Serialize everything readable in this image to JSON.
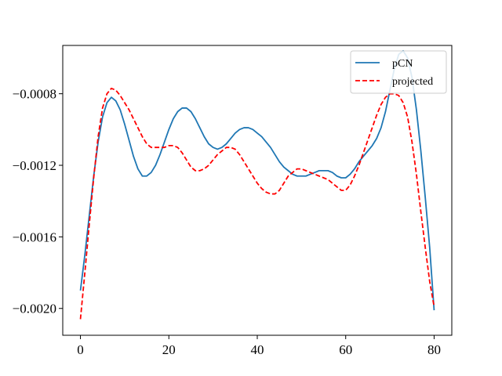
{
  "chart_data": {
    "type": "line",
    "title": "",
    "xlabel": "",
    "ylabel": "",
    "xlim": [
      -4,
      84
    ],
    "ylim": [
      -0.00215,
      -0.00053
    ],
    "xticks": [
      0,
      20,
      40,
      60,
      80
    ],
    "xtick_labels": [
      "0",
      "20",
      "40",
      "60",
      "80"
    ],
    "yticks": [
      -0.002,
      -0.0016,
      -0.0012,
      -0.0008
    ],
    "ytick_labels": [
      "−0.0020",
      "−0.0016",
      "−0.0012",
      "−0.0008"
    ],
    "grid": false,
    "legend": {
      "placement": "top-right"
    },
    "series": [
      {
        "name": "pCN",
        "color": "#1f77b4",
        "dash": "solid",
        "points": [
          [
            0,
            -0.0019
          ],
          [
            1,
            -0.0017
          ],
          [
            2,
            -0.00148
          ],
          [
            3,
            -0.00126
          ],
          [
            4,
            -0.00107
          ],
          [
            5,
            -0.00093
          ],
          [
            6,
            -0.00085
          ],
          [
            7,
            -0.00082
          ],
          [
            8,
            -0.00084
          ],
          [
            9,
            -0.00089
          ],
          [
            10,
            -0.00097
          ],
          [
            11,
            -0.00106
          ],
          [
            12,
            -0.00115
          ],
          [
            13,
            -0.00122
          ],
          [
            14,
            -0.00126
          ],
          [
            15,
            -0.00126
          ],
          [
            16,
            -0.00124
          ],
          [
            17,
            -0.0012
          ],
          [
            18,
            -0.00114
          ],
          [
            19,
            -0.00107
          ],
          [
            20,
            -0.001
          ],
          [
            21,
            -0.00094
          ],
          [
            22,
            -0.0009
          ],
          [
            23,
            -0.00088
          ],
          [
            24,
            -0.00088
          ],
          [
            25,
            -0.0009
          ],
          [
            26,
            -0.00094
          ],
          [
            27,
            -0.00099
          ],
          [
            28,
            -0.00104
          ],
          [
            29,
            -0.00108
          ],
          [
            30,
            -0.0011
          ],
          [
            31,
            -0.00111
          ],
          [
            32,
            -0.0011
          ],
          [
            33,
            -0.00108
          ],
          [
            34,
            -0.00105
          ],
          [
            35,
            -0.00102
          ],
          [
            36,
            -0.001
          ],
          [
            37,
            -0.00099
          ],
          [
            38,
            -0.00099
          ],
          [
            39,
            -0.001
          ],
          [
            40,
            -0.00102
          ],
          [
            41,
            -0.00104
          ],
          [
            42,
            -0.00107
          ],
          [
            43,
            -0.0011
          ],
          [
            44,
            -0.00114
          ],
          [
            45,
            -0.00118
          ],
          [
            46,
            -0.00121
          ],
          [
            47,
            -0.00123
          ],
          [
            48,
            -0.00125
          ],
          [
            49,
            -0.00126
          ],
          [
            50,
            -0.00126
          ],
          [
            51,
            -0.00126
          ],
          [
            52,
            -0.00125
          ],
          [
            53,
            -0.00124
          ],
          [
            54,
            -0.00123
          ],
          [
            55,
            -0.00123
          ],
          [
            56,
            -0.00123
          ],
          [
            57,
            -0.00124
          ],
          [
            58,
            -0.00126
          ],
          [
            59,
            -0.00127
          ],
          [
            60,
            -0.00127
          ],
          [
            61,
            -0.00125
          ],
          [
            62,
            -0.00122
          ],
          [
            63,
            -0.00118
          ],
          [
            64,
            -0.00115
          ],
          [
            65,
            -0.00112
          ],
          [
            66,
            -0.00109
          ],
          [
            67,
            -0.00105
          ],
          [
            68,
            -0.00099
          ],
          [
            69,
            -0.0009
          ],
          [
            70,
            -0.00078
          ],
          [
            71,
            -0.00066
          ],
          [
            72,
            -0.00058
          ],
          [
            73,
            -0.00056
          ],
          [
            74,
            -0.0006
          ],
          [
            75,
            -0.00071
          ],
          [
            76,
            -0.00089
          ],
          [
            77,
            -0.00112
          ],
          [
            78,
            -0.00138
          ],
          [
            79,
            -0.00166
          ],
          [
            80,
            -0.00201
          ]
        ]
      },
      {
        "name": "projected",
        "color": "#ff0000",
        "dash": "dashed",
        "points": [
          [
            0,
            -0.00206
          ],
          [
            1,
            -0.0018
          ],
          [
            2,
            -0.00153
          ],
          [
            3,
            -0.00127
          ],
          [
            4,
            -0.00104
          ],
          [
            5,
            -0.00088
          ],
          [
            6,
            -0.0008
          ],
          [
            7,
            -0.00077
          ],
          [
            8,
            -0.00078
          ],
          [
            9,
            -0.00081
          ],
          [
            10,
            -0.00085
          ],
          [
            11,
            -0.00089
          ],
          [
            12,
            -0.00094
          ],
          [
            13,
            -0.00099
          ],
          [
            14,
            -0.00104
          ],
          [
            15,
            -0.00108
          ],
          [
            16,
            -0.0011
          ],
          [
            17,
            -0.0011
          ],
          [
            18,
            -0.0011
          ],
          [
            19,
            -0.0011
          ],
          [
            20,
            -0.00109
          ],
          [
            21,
            -0.00109
          ],
          [
            22,
            -0.0011
          ],
          [
            23,
            -0.00113
          ],
          [
            24,
            -0.00117
          ],
          [
            25,
            -0.00121
          ],
          [
            26,
            -0.00123
          ],
          [
            27,
            -0.00123
          ],
          [
            28,
            -0.00122
          ],
          [
            29,
            -0.0012
          ],
          [
            30,
            -0.00117
          ],
          [
            31,
            -0.00114
          ],
          [
            32,
            -0.00112
          ],
          [
            33,
            -0.0011
          ],
          [
            34,
            -0.0011
          ],
          [
            35,
            -0.00111
          ],
          [
            36,
            -0.00114
          ],
          [
            37,
            -0.00118
          ],
          [
            38,
            -0.00122
          ],
          [
            39,
            -0.00126
          ],
          [
            40,
            -0.0013
          ],
          [
            41,
            -0.00133
          ],
          [
            42,
            -0.00135
          ],
          [
            43,
            -0.00136
          ],
          [
            44,
            -0.00136
          ],
          [
            45,
            -0.00134
          ],
          [
            46,
            -0.0013
          ],
          [
            47,
            -0.00126
          ],
          [
            48,
            -0.00124
          ],
          [
            49,
            -0.00122
          ],
          [
            50,
            -0.00122
          ],
          [
            51,
            -0.00123
          ],
          [
            52,
            -0.00124
          ],
          [
            53,
            -0.00125
          ],
          [
            54,
            -0.00126
          ],
          [
            55,
            -0.00127
          ],
          [
            56,
            -0.00128
          ],
          [
            57,
            -0.0013
          ],
          [
            58,
            -0.00132
          ],
          [
            59,
            -0.00134
          ],
          [
            60,
            -0.00134
          ],
          [
            61,
            -0.00131
          ],
          [
            62,
            -0.00126
          ],
          [
            63,
            -0.0012
          ],
          [
            64,
            -0.00113
          ],
          [
            65,
            -0.00106
          ],
          [
            66,
            -0.00099
          ],
          [
            67,
            -0.00092
          ],
          [
            68,
            -0.00086
          ],
          [
            69,
            -0.00082
          ],
          [
            70,
            -0.0008
          ],
          [
            71,
            -0.0008
          ],
          [
            72,
            -0.00081
          ],
          [
            73,
            -0.00085
          ],
          [
            74,
            -0.00093
          ],
          [
            75,
            -0.00107
          ],
          [
            76,
            -0.00125
          ],
          [
            77,
            -0.00146
          ],
          [
            78,
            -0.00166
          ],
          [
            79,
            -0.00185
          ],
          [
            80,
            -0.00199
          ]
        ]
      }
    ]
  }
}
